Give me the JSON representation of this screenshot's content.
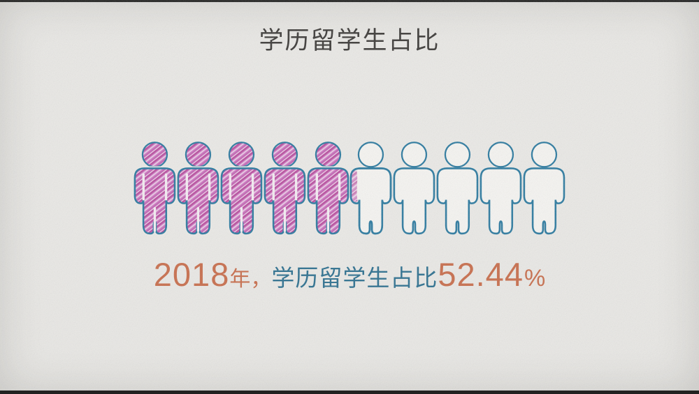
{
  "title": "学历留学生占比",
  "caption": {
    "year": "2018",
    "year_suffix": "年，",
    "label": "学历留学生占比",
    "value": "52.44",
    "percent_sign": "%"
  },
  "chart_data": {
    "type": "pictograph",
    "title": "学历留学生占比",
    "total_icons": 10,
    "icon_unit_percent": 10,
    "filled_icons": 5,
    "partial_icon_fraction": 0.244,
    "value_percent": 52.44,
    "year": 2018,
    "caption": "2018年，学历留学生占比52.44%",
    "legend_position": "none",
    "grid": false
  },
  "colors": {
    "background": "#e9e8e5",
    "letterbox_bar": "#262625",
    "title_text": "#3e3c3a",
    "accent_orange": "#c86f4e",
    "accent_teal": "#2f7190",
    "icon_outline": "#2e7ba0",
    "icon_fill_pink": "#c468b8",
    "icon_empty_fill": "#f5f4f1"
  }
}
